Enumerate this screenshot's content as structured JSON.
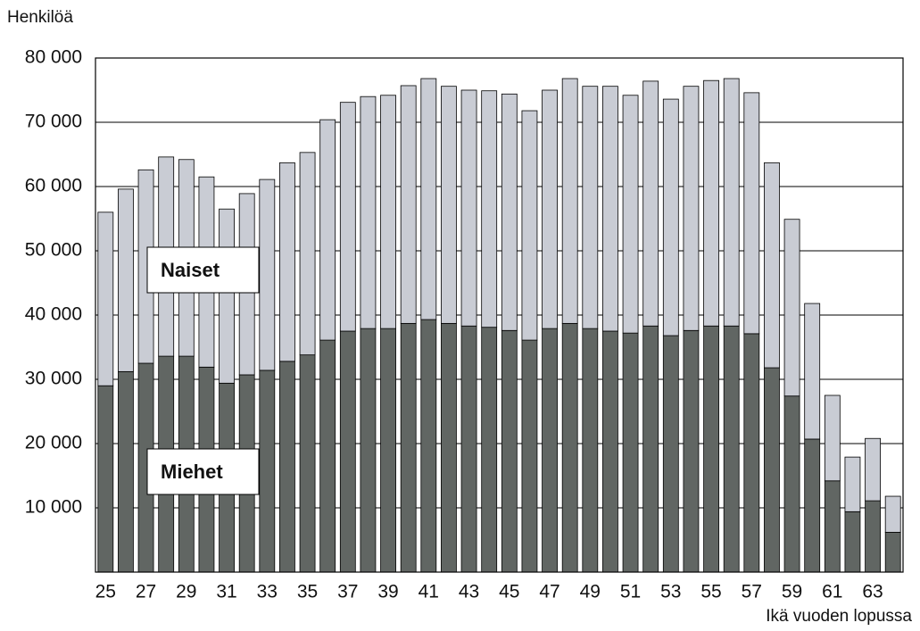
{
  "chart_data": {
    "type": "stacked_bar",
    "y_label": "Henkilöä",
    "x_label": "Ikä vuoden lopussa",
    "categories": [
      "25",
      null,
      "27",
      null,
      "29",
      null,
      "31",
      null,
      "33",
      null,
      "35",
      null,
      "37",
      null,
      "39",
      null,
      "41",
      null,
      "43",
      null,
      "45",
      null,
      "47",
      null,
      "49",
      null,
      "51",
      null,
      "53",
      null,
      "55",
      null,
      "57",
      null,
      "59",
      null,
      "61",
      null,
      "63",
      null
    ],
    "series": [
      {
        "name": "Miehet",
        "color": "#616663",
        "values": [
          29000,
          31200,
          32500,
          33600,
          33600,
          31900,
          29400,
          30700,
          31400,
          32800,
          33800,
          36100,
          37500,
          37900,
          37900,
          38700,
          39300,
          38700,
          38300,
          38100,
          37600,
          36100,
          37900,
          38700,
          37900,
          37500,
          37200,
          38300,
          36800,
          37600,
          38300,
          38300,
          37100,
          31800,
          27400,
          20700,
          14200,
          9400,
          11100,
          6200
        ]
      },
      {
        "name": "Naiset",
        "color": "#c9ccd4",
        "values": [
          27000,
          28400,
          30100,
          31000,
          30600,
          29600,
          27100,
          28200,
          29700,
          30900,
          31500,
          34300,
          35600,
          36100,
          36300,
          37000,
          37500,
          36900,
          36700,
          36800,
          36800,
          35700,
          37100,
          38100,
          37700,
          38100,
          37000,
          38100,
          36800,
          38000,
          38200,
          38500,
          37500,
          31900,
          27500,
          21100,
          13300,
          8500,
          9700,
          5600
        ]
      }
    ],
    "ylim": [
      0,
      80000
    ],
    "yticks": [
      {
        "value": 10000,
        "label": "10 000"
      },
      {
        "value": 20000,
        "label": "20 000"
      },
      {
        "value": 30000,
        "label": "30 000"
      },
      {
        "value": 40000,
        "label": "40 000"
      },
      {
        "value": 50000,
        "label": "50 000"
      },
      {
        "value": 60000,
        "label": "60 000"
      },
      {
        "value": 70000,
        "label": "70 000"
      },
      {
        "value": 80000,
        "label": "80 000"
      }
    ],
    "grid": true
  }
}
